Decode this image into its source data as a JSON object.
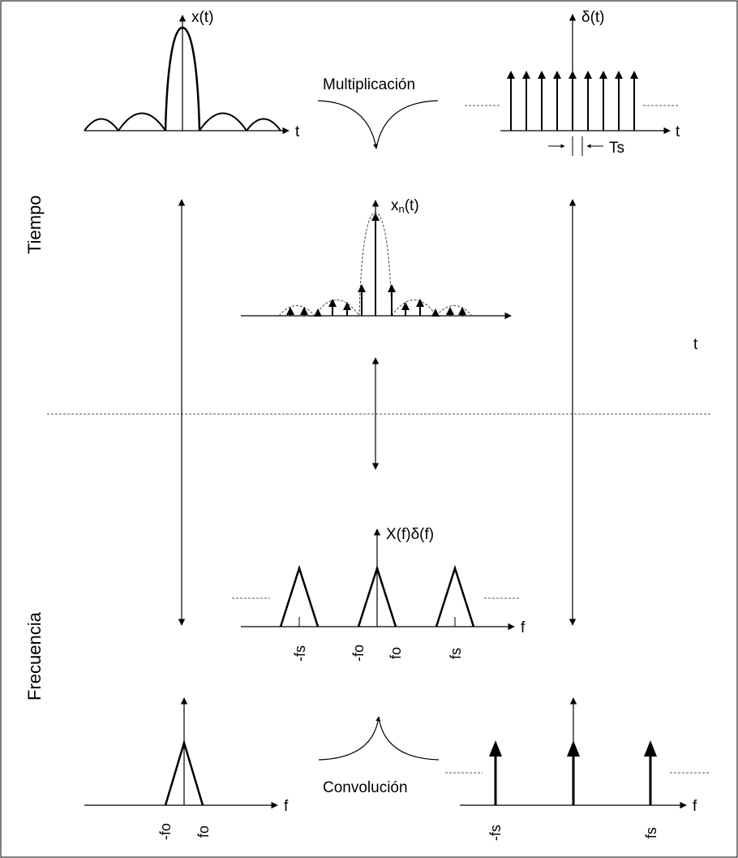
{
  "section_labels": {
    "time": "Tiempo",
    "frequency": "Frecuencia"
  },
  "operations": {
    "multiply": "Multiplicación",
    "convolve": "Convolución"
  },
  "time_domain": {
    "signal_x": {
      "label": "x(t)",
      "axis": "t"
    },
    "impulse_train": {
      "label": "δ(t)",
      "axis": "t",
      "period": "Ts"
    },
    "sampled": {
      "label": "xn(t)",
      "label_base": "x",
      "label_sub": "n",
      "label_tail": "(t)"
    },
    "stray_axis_label": "t"
  },
  "frequency_domain": {
    "product": {
      "label": "X(f)δ(f)",
      "axis": "f",
      "ticks": [
        "-fs",
        "-fo",
        "fo",
        "fs"
      ]
    },
    "spectrum_x": {
      "axis": "f",
      "ticks": [
        "-fo",
        "fo"
      ]
    },
    "impulse_spectrum": {
      "axis": "f",
      "ticks": [
        "-fs",
        "fs"
      ]
    }
  }
}
